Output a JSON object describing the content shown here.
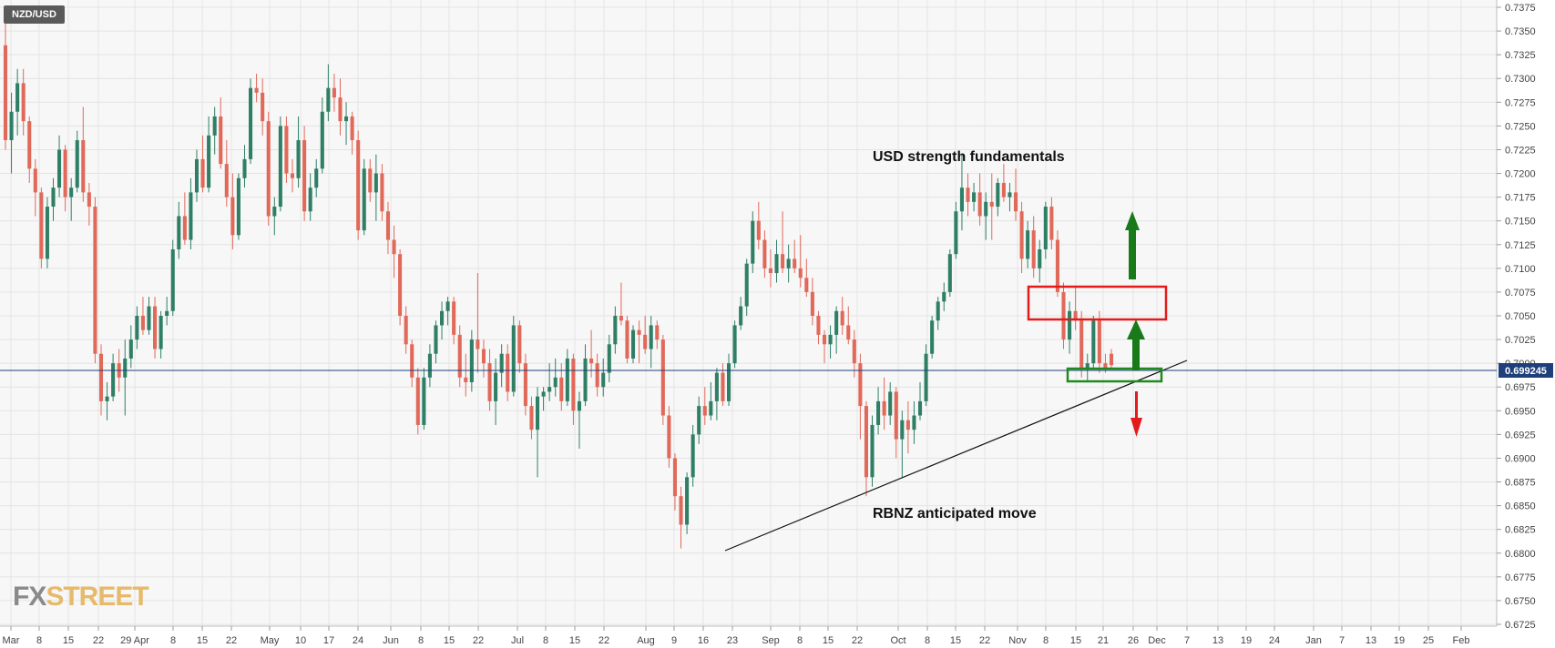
{
  "chart_data": {
    "type": "candlestick",
    "symbol": "NZD/USD",
    "current_price": "0.699245",
    "ylim": [
      0.6725,
      0.7375
    ],
    "y_ticks": [
      "0.7375",
      "0.7350",
      "0.7325",
      "0.7300",
      "0.7275",
      "0.7250",
      "0.7225",
      "0.7200",
      "0.7175",
      "0.7150",
      "0.7125",
      "0.7100",
      "0.7075",
      "0.7050",
      "0.7025",
      "0.7000",
      "0.6975",
      "0.6950",
      "0.6925",
      "0.6900",
      "0.6875",
      "0.6850",
      "0.6825",
      "0.6800",
      "0.6775",
      "0.6750",
      "0.6725"
    ],
    "x_ticks": [
      "Mar",
      "8",
      "15",
      "22",
      "29 Apr",
      "8",
      "15",
      "22",
      "May",
      "10",
      "17",
      "24",
      "Jun",
      "8",
      "15",
      "22",
      "Jul",
      "8",
      "15",
      "22",
      "Aug",
      "9",
      "16",
      "23",
      "Sep",
      "8",
      "15",
      "22",
      "Oct",
      "8",
      "15",
      "22",
      "Nov",
      "8",
      "15",
      "21",
      "26",
      "Dec",
      "7",
      "13",
      "19",
      "24",
      "Jan",
      "7",
      "13",
      "19",
      "25",
      "Feb"
    ],
    "annotations": {
      "top_text": "USD strength fundamentals",
      "bottom_text": "RBNZ anticipated move"
    },
    "candles": [
      [
        0.7335,
        0.7375,
        0.7225,
        0.7235
      ],
      [
        0.7235,
        0.7285,
        0.72,
        0.7265
      ],
      [
        0.7265,
        0.731,
        0.724,
        0.7295
      ],
      [
        0.7295,
        0.731,
        0.724,
        0.7255
      ],
      [
        0.7255,
        0.726,
        0.719,
        0.7205
      ],
      [
        0.7205,
        0.7215,
        0.7155,
        0.718
      ],
      [
        0.718,
        0.7185,
        0.71,
        0.711
      ],
      [
        0.711,
        0.7175,
        0.71,
        0.7165
      ],
      [
        0.7165,
        0.7195,
        0.715,
        0.7185
      ],
      [
        0.7185,
        0.724,
        0.7175,
        0.7225
      ],
      [
        0.7225,
        0.723,
        0.716,
        0.7175
      ],
      [
        0.7175,
        0.7195,
        0.715,
        0.7185
      ],
      [
        0.7185,
        0.7245,
        0.718,
        0.7235
      ],
      [
        0.7235,
        0.727,
        0.717,
        0.718
      ],
      [
        0.718,
        0.719,
        0.7145,
        0.7165
      ],
      [
        0.7165,
        0.7175,
        0.7,
        0.701
      ],
      [
        0.701,
        0.702,
        0.6945,
        0.696
      ],
      [
        0.696,
        0.698,
        0.694,
        0.6965
      ],
      [
        0.6965,
        0.701,
        0.696,
        0.7
      ],
      [
        0.7,
        0.7015,
        0.697,
        0.6985
      ],
      [
        0.6985,
        0.7025,
        0.6945,
        0.7005
      ],
      [
        0.7005,
        0.704,
        0.6995,
        0.7025
      ],
      [
        0.7025,
        0.706,
        0.7015,
        0.705
      ],
      [
        0.705,
        0.707,
        0.703,
        0.7035
      ],
      [
        0.7035,
        0.707,
        0.703,
        0.706
      ],
      [
        0.706,
        0.707,
        0.7005,
        0.7015
      ],
      [
        0.7015,
        0.7055,
        0.7005,
        0.705
      ],
      [
        0.705,
        0.707,
        0.704,
        0.7055
      ],
      [
        0.7055,
        0.713,
        0.705,
        0.712
      ],
      [
        0.712,
        0.717,
        0.711,
        0.7155
      ],
      [
        0.7155,
        0.718,
        0.7125,
        0.713
      ],
      [
        0.713,
        0.7195,
        0.712,
        0.718
      ],
      [
        0.718,
        0.7225,
        0.717,
        0.7215
      ],
      [
        0.7215,
        0.724,
        0.718,
        0.7185
      ],
      [
        0.7185,
        0.726,
        0.718,
        0.724
      ],
      [
        0.724,
        0.727,
        0.722,
        0.726
      ],
      [
        0.726,
        0.728,
        0.7205,
        0.721
      ],
      [
        0.721,
        0.7235,
        0.7165,
        0.7175
      ],
      [
        0.7175,
        0.72,
        0.712,
        0.7135
      ],
      [
        0.7135,
        0.72,
        0.713,
        0.7195
      ],
      [
        0.7195,
        0.723,
        0.7185,
        0.7215
      ],
      [
        0.7215,
        0.73,
        0.721,
        0.729
      ],
      [
        0.729,
        0.7305,
        0.7275,
        0.7285
      ],
      [
        0.7285,
        0.73,
        0.724,
        0.7255
      ],
      [
        0.7255,
        0.7265,
        0.7145,
        0.7155
      ],
      [
        0.7155,
        0.7175,
        0.7135,
        0.7165
      ],
      [
        0.7165,
        0.726,
        0.716,
        0.725
      ],
      [
        0.725,
        0.726,
        0.719,
        0.72
      ],
      [
        0.72,
        0.7215,
        0.718,
        0.7195
      ],
      [
        0.7195,
        0.726,
        0.7185,
        0.7235
      ],
      [
        0.7235,
        0.725,
        0.715,
        0.716
      ],
      [
        0.716,
        0.72,
        0.715,
        0.7185
      ],
      [
        0.7185,
        0.7215,
        0.7175,
        0.7205
      ],
      [
        0.7205,
        0.728,
        0.72,
        0.7265
      ],
      [
        0.7265,
        0.7315,
        0.7255,
        0.729
      ],
      [
        0.729,
        0.7305,
        0.7265,
        0.728
      ],
      [
        0.728,
        0.73,
        0.724,
        0.7255
      ],
      [
        0.7255,
        0.7275,
        0.723,
        0.726
      ],
      [
        0.726,
        0.7265,
        0.722,
        0.7235
      ],
      [
        0.7235,
        0.7245,
        0.713,
        0.714
      ],
      [
        0.714,
        0.7215,
        0.7135,
        0.7205
      ],
      [
        0.7205,
        0.7215,
        0.717,
        0.718
      ],
      [
        0.718,
        0.722,
        0.715,
        0.72
      ],
      [
        0.72,
        0.721,
        0.715,
        0.716
      ],
      [
        0.716,
        0.717,
        0.7115,
        0.713
      ],
      [
        0.713,
        0.7145,
        0.709,
        0.7115
      ],
      [
        0.7115,
        0.712,
        0.704,
        0.705
      ],
      [
        0.705,
        0.706,
        0.701,
        0.702
      ],
      [
        0.702,
        0.7025,
        0.6975,
        0.6985
      ],
      [
        0.6985,
        0.6995,
        0.6925,
        0.6935
      ],
      [
        0.6935,
        0.6995,
        0.693,
        0.6985
      ],
      [
        0.6985,
        0.702,
        0.6975,
        0.701
      ],
      [
        0.701,
        0.7045,
        0.7,
        0.704
      ],
      [
        0.704,
        0.7065,
        0.7025,
        0.7055
      ],
      [
        0.7055,
        0.707,
        0.704,
        0.7065
      ],
      [
        0.7065,
        0.707,
        0.702,
        0.703
      ],
      [
        0.703,
        0.704,
        0.6975,
        0.6985
      ],
      [
        0.6985,
        0.701,
        0.6965,
        0.698
      ],
      [
        0.698,
        0.7035,
        0.697,
        0.7025
      ],
      [
        0.7025,
        0.7095,
        0.699,
        0.7015
      ],
      [
        0.7015,
        0.7025,
        0.6985,
        0.7
      ],
      [
        0.7,
        0.7015,
        0.695,
        0.696
      ],
      [
        0.696,
        0.7005,
        0.6935,
        0.699
      ],
      [
        0.699,
        0.702,
        0.6975,
        0.701
      ],
      [
        0.701,
        0.702,
        0.696,
        0.697
      ],
      [
        0.697,
        0.705,
        0.6965,
        0.704
      ],
      [
        0.704,
        0.7045,
        0.699,
        0.7
      ],
      [
        0.7,
        0.701,
        0.6945,
        0.6955
      ],
      [
        0.6955,
        0.6965,
        0.692,
        0.693
      ],
      [
        0.693,
        0.6975,
        0.688,
        0.6965
      ],
      [
        0.6965,
        0.6975,
        0.695,
        0.697
      ],
      [
        0.697,
        0.7,
        0.696,
        0.6975
      ],
      [
        0.6975,
        0.7005,
        0.6965,
        0.6985
      ],
      [
        0.6985,
        0.7,
        0.695,
        0.696
      ],
      [
        0.696,
        0.7015,
        0.6955,
        0.7005
      ],
      [
        0.7005,
        0.701,
        0.6935,
        0.695
      ],
      [
        0.695,
        0.697,
        0.691,
        0.696
      ],
      [
        0.696,
        0.702,
        0.6955,
        0.7005
      ],
      [
        0.7005,
        0.7035,
        0.6985,
        0.7
      ],
      [
        0.7,
        0.701,
        0.6965,
        0.6975
      ],
      [
        0.6975,
        0.7005,
        0.6965,
        0.699
      ],
      [
        0.699,
        0.703,
        0.698,
        0.702
      ],
      [
        0.702,
        0.706,
        0.701,
        0.705
      ],
      [
        0.705,
        0.7085,
        0.704,
        0.7045
      ],
      [
        0.7045,
        0.705,
        0.7,
        0.7005
      ],
      [
        0.7005,
        0.704,
        0.7,
        0.7035
      ],
      [
        0.7035,
        0.7045,
        0.7,
        0.703
      ],
      [
        0.703,
        0.705,
        0.701,
        0.7015
      ],
      [
        0.7015,
        0.705,
        0.6995,
        0.704
      ],
      [
        0.704,
        0.7045,
        0.7015,
        0.7025
      ],
      [
        0.7025,
        0.703,
        0.6935,
        0.6945
      ],
      [
        0.6945,
        0.6955,
        0.689,
        0.69
      ],
      [
        0.69,
        0.6905,
        0.6845,
        0.686
      ],
      [
        0.686,
        0.687,
        0.6805,
        0.683
      ],
      [
        0.683,
        0.6885,
        0.682,
        0.688
      ],
      [
        0.688,
        0.6935,
        0.687,
        0.6925
      ],
      [
        0.6925,
        0.6965,
        0.6915,
        0.6955
      ],
      [
        0.6955,
        0.6975,
        0.6935,
        0.6945
      ],
      [
        0.6945,
        0.698,
        0.694,
        0.696
      ],
      [
        0.696,
        0.6995,
        0.694,
        0.699
      ],
      [
        0.699,
        0.7,
        0.6955,
        0.696
      ],
      [
        0.696,
        0.701,
        0.6955,
        0.7
      ],
      [
        0.7,
        0.7045,
        0.6995,
        0.704
      ],
      [
        0.704,
        0.707,
        0.7035,
        0.706
      ],
      [
        0.706,
        0.711,
        0.705,
        0.7105
      ],
      [
        0.7105,
        0.716,
        0.7095,
        0.715
      ],
      [
        0.715,
        0.717,
        0.712,
        0.713
      ],
      [
        0.713,
        0.714,
        0.709,
        0.71
      ],
      [
        0.71,
        0.712,
        0.708,
        0.7095
      ],
      [
        0.7095,
        0.713,
        0.7085,
        0.7115
      ],
      [
        0.7115,
        0.716,
        0.7095,
        0.71
      ],
      [
        0.71,
        0.7125,
        0.7085,
        0.711
      ],
      [
        0.711,
        0.713,
        0.7095,
        0.71
      ],
      [
        0.71,
        0.7135,
        0.708,
        0.709
      ],
      [
        0.709,
        0.711,
        0.707,
        0.7075
      ],
      [
        0.7075,
        0.709,
        0.704,
        0.705
      ],
      [
        0.705,
        0.7055,
        0.702,
        0.703
      ],
      [
        0.703,
        0.7035,
        0.7,
        0.702
      ],
      [
        0.702,
        0.704,
        0.7005,
        0.703
      ],
      [
        0.703,
        0.706,
        0.701,
        0.7055
      ],
      [
        0.7055,
        0.707,
        0.703,
        0.704
      ],
      [
        0.704,
        0.706,
        0.702,
        0.7025
      ],
      [
        0.7025,
        0.7035,
        0.6985,
        0.7
      ],
      [
        0.7,
        0.701,
        0.692,
        0.6955
      ],
      [
        0.6955,
        0.696,
        0.686,
        0.688
      ],
      [
        0.688,
        0.6945,
        0.687,
        0.6935
      ],
      [
        0.6935,
        0.6975,
        0.6925,
        0.696
      ],
      [
        0.696,
        0.6985,
        0.693,
        0.6945
      ],
      [
        0.6945,
        0.698,
        0.6935,
        0.697
      ],
      [
        0.697,
        0.6975,
        0.69,
        0.692
      ],
      [
        0.692,
        0.695,
        0.688,
        0.694
      ],
      [
        0.694,
        0.696,
        0.6905,
        0.693
      ],
      [
        0.693,
        0.696,
        0.6915,
        0.6945
      ],
      [
        0.6945,
        0.698,
        0.694,
        0.696
      ],
      [
        0.696,
        0.702,
        0.6955,
        0.701
      ],
      [
        0.701,
        0.705,
        0.7005,
        0.7045
      ],
      [
        0.7045,
        0.707,
        0.7035,
        0.7065
      ],
      [
        0.7065,
        0.7085,
        0.7055,
        0.7075
      ],
      [
        0.7075,
        0.712,
        0.707,
        0.7115
      ],
      [
        0.7115,
        0.717,
        0.711,
        0.716
      ],
      [
        0.716,
        0.722,
        0.714,
        0.7185
      ],
      [
        0.7185,
        0.72,
        0.7155,
        0.717
      ],
      [
        0.717,
        0.719,
        0.716,
        0.718
      ],
      [
        0.718,
        0.72,
        0.7145,
        0.7155
      ],
      [
        0.7155,
        0.718,
        0.713,
        0.717
      ],
      [
        0.717,
        0.72,
        0.713,
        0.7165
      ],
      [
        0.7165,
        0.7195,
        0.7155,
        0.719
      ],
      [
        0.719,
        0.721,
        0.717,
        0.7175
      ],
      [
        0.7175,
        0.719,
        0.716,
        0.718
      ],
      [
        0.718,
        0.7205,
        0.715,
        0.716
      ],
      [
        0.716,
        0.717,
        0.7095,
        0.711
      ],
      [
        0.711,
        0.715,
        0.71,
        0.714
      ],
      [
        0.714,
        0.7155,
        0.709,
        0.71
      ],
      [
        0.71,
        0.713,
        0.7085,
        0.712
      ],
      [
        0.712,
        0.717,
        0.711,
        0.7165
      ],
      [
        0.7165,
        0.7175,
        0.712,
        0.713
      ],
      [
        0.713,
        0.714,
        0.707,
        0.7075
      ],
      [
        0.7075,
        0.7085,
        0.7015,
        0.7025
      ],
      [
        0.7025,
        0.7065,
        0.701,
        0.7055
      ],
      [
        0.7055,
        0.708,
        0.7035,
        0.7045
      ],
      [
        0.7045,
        0.7055,
        0.6985,
        0.6995
      ],
      [
        0.6995,
        0.701,
        0.698,
        0.7
      ],
      [
        0.7,
        0.705,
        0.6995,
        0.7045
      ],
      [
        0.7045,
        0.7055,
        0.699,
        0.7
      ],
      [
        0.7,
        0.701,
        0.699,
        0.6995
      ],
      [
        0.701,
        0.7015,
        0.6995,
        0.6998
      ]
    ]
  }
}
